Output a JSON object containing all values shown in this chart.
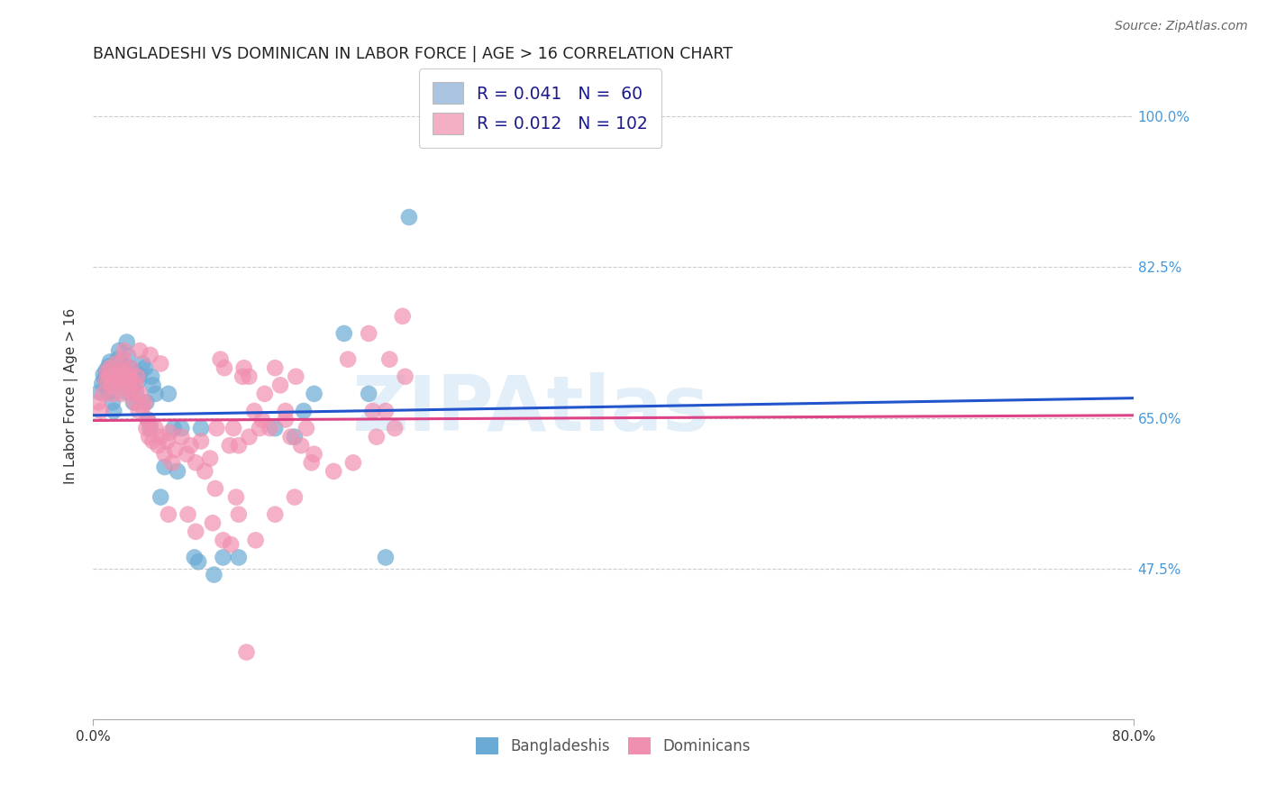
{
  "title": "BANGLADESHI VS DOMINICAN IN LABOR FORCE | AGE > 16 CORRELATION CHART",
  "source": "Source: ZipAtlas.com",
  "ylabel": "In Labor Force | Age > 16",
  "yticks": [
    47.5,
    65.0,
    82.5,
    100.0
  ],
  "ytick_labels": [
    "47.5%",
    "65.0%",
    "82.5%",
    "100.0%"
  ],
  "xmin": 0.0,
  "xmax": 0.8,
  "ymin": 0.3,
  "ymax": 1.05,
  "watermark": "ZIPAtlas",
  "legend_entries": [
    {
      "label": "R = 0.041   N =  60",
      "color": "#aac4e2"
    },
    {
      "label": "R = 0.012   N = 102",
      "color": "#f4afc4"
    }
  ],
  "legend_bottom_labels": [
    "Bangladeshis",
    "Dominicans"
  ],
  "blue_color": "#6aaad4",
  "pink_color": "#f090b0",
  "blue_line_color": "#2255cc",
  "pink_line_color": "#dd4488",
  "blue_scatter": [
    [
      0.005,
      0.68
    ],
    [
      0.007,
      0.69
    ],
    [
      0.008,
      0.7
    ],
    [
      0.009,
      0.695
    ],
    [
      0.01,
      0.705
    ],
    [
      0.011,
      0.698
    ],
    [
      0.012,
      0.68
    ],
    [
      0.012,
      0.71
    ],
    [
      0.013,
      0.715
    ],
    [
      0.014,
      0.7
    ],
    [
      0.015,
      0.695
    ],
    [
      0.015,
      0.668
    ],
    [
      0.016,
      0.69
    ],
    [
      0.016,
      0.658
    ],
    [
      0.017,
      0.705
    ],
    [
      0.018,
      0.695
    ],
    [
      0.019,
      0.718
    ],
    [
      0.02,
      0.728
    ],
    [
      0.021,
      0.715
    ],
    [
      0.022,
      0.7
    ],
    [
      0.023,
      0.71
    ],
    [
      0.024,
      0.692
    ],
    [
      0.025,
      0.68
    ],
    [
      0.026,
      0.738
    ],
    [
      0.027,
      0.722
    ],
    [
      0.028,
      0.708
    ],
    [
      0.03,
      0.685
    ],
    [
      0.031,
      0.668
    ],
    [
      0.032,
      0.703
    ],
    [
      0.033,
      0.68
    ],
    [
      0.035,
      0.693
    ],
    [
      0.036,
      0.7
    ],
    [
      0.038,
      0.713
    ],
    [
      0.04,
      0.708
    ],
    [
      0.041,
      0.668
    ],
    [
      0.042,
      0.648
    ],
    [
      0.044,
      0.638
    ],
    [
      0.045,
      0.698
    ],
    [
      0.046,
      0.688
    ],
    [
      0.048,
      0.678
    ],
    [
      0.052,
      0.558
    ],
    [
      0.055,
      0.593
    ],
    [
      0.058,
      0.678
    ],
    [
      0.062,
      0.638
    ],
    [
      0.065,
      0.588
    ],
    [
      0.068,
      0.638
    ],
    [
      0.078,
      0.488
    ],
    [
      0.081,
      0.483
    ],
    [
      0.083,
      0.638
    ],
    [
      0.093,
      0.468
    ],
    [
      0.1,
      0.488
    ],
    [
      0.112,
      0.488
    ],
    [
      0.14,
      0.638
    ],
    [
      0.155,
      0.628
    ],
    [
      0.162,
      0.658
    ],
    [
      0.17,
      0.678
    ],
    [
      0.193,
      0.748
    ],
    [
      0.212,
      0.678
    ],
    [
      0.225,
      0.488
    ],
    [
      0.243,
      0.883
    ]
  ],
  "pink_scatter": [
    [
      0.004,
      0.668
    ],
    [
      0.006,
      0.658
    ],
    [
      0.008,
      0.678
    ],
    [
      0.01,
      0.693
    ],
    [
      0.011,
      0.703
    ],
    [
      0.012,
      0.698
    ],
    [
      0.013,
      0.708
    ],
    [
      0.014,
      0.688
    ],
    [
      0.015,
      0.678
    ],
    [
      0.016,
      0.693
    ],
    [
      0.017,
      0.698
    ],
    [
      0.018,
      0.713
    ],
    [
      0.019,
      0.693
    ],
    [
      0.02,
      0.703
    ],
    [
      0.021,
      0.698
    ],
    [
      0.022,
      0.678
    ],
    [
      0.023,
      0.718
    ],
    [
      0.024,
      0.728
    ],
    [
      0.025,
      0.693
    ],
    [
      0.026,
      0.703
    ],
    [
      0.027,
      0.683
    ],
    [
      0.028,
      0.698
    ],
    [
      0.029,
      0.708
    ],
    [
      0.03,
      0.693
    ],
    [
      0.031,
      0.678
    ],
    [
      0.032,
      0.668
    ],
    [
      0.033,
      0.688
    ],
    [
      0.034,
      0.698
    ],
    [
      0.035,
      0.658
    ],
    [
      0.036,
      0.678
    ],
    [
      0.038,
      0.663
    ],
    [
      0.04,
      0.668
    ],
    [
      0.041,
      0.638
    ],
    [
      0.042,
      0.648
    ],
    [
      0.043,
      0.628
    ],
    [
      0.044,
      0.643
    ],
    [
      0.046,
      0.623
    ],
    [
      0.048,
      0.638
    ],
    [
      0.05,
      0.618
    ],
    [
      0.052,
      0.628
    ],
    [
      0.055,
      0.608
    ],
    [
      0.057,
      0.623
    ],
    [
      0.059,
      0.633
    ],
    [
      0.061,
      0.598
    ],
    [
      0.063,
      0.613
    ],
    [
      0.068,
      0.628
    ],
    [
      0.072,
      0.608
    ],
    [
      0.075,
      0.618
    ],
    [
      0.079,
      0.598
    ],
    [
      0.083,
      0.623
    ],
    [
      0.086,
      0.588
    ],
    [
      0.09,
      0.603
    ],
    [
      0.094,
      0.568
    ],
    [
      0.098,
      0.718
    ],
    [
      0.101,
      0.708
    ],
    [
      0.105,
      0.618
    ],
    [
      0.108,
      0.638
    ],
    [
      0.112,
      0.618
    ],
    [
      0.116,
      0.708
    ],
    [
      0.12,
      0.698
    ],
    [
      0.124,
      0.658
    ],
    [
      0.128,
      0.638
    ],
    [
      0.132,
      0.678
    ],
    [
      0.136,
      0.638
    ],
    [
      0.14,
      0.708
    ],
    [
      0.144,
      0.688
    ],
    [
      0.148,
      0.658
    ],
    [
      0.152,
      0.628
    ],
    [
      0.156,
      0.698
    ],
    [
      0.16,
      0.618
    ],
    [
      0.164,
      0.638
    ],
    [
      0.168,
      0.598
    ],
    [
      0.036,
      0.728
    ],
    [
      0.044,
      0.723
    ],
    [
      0.052,
      0.713
    ],
    [
      0.058,
      0.538
    ],
    [
      0.073,
      0.538
    ],
    [
      0.079,
      0.518
    ],
    [
      0.092,
      0.528
    ],
    [
      0.1,
      0.508
    ],
    [
      0.106,
      0.503
    ],
    [
      0.112,
      0.538
    ],
    [
      0.118,
      0.378
    ],
    [
      0.125,
      0.508
    ],
    [
      0.14,
      0.538
    ],
    [
      0.155,
      0.558
    ],
    [
      0.17,
      0.608
    ],
    [
      0.185,
      0.588
    ],
    [
      0.2,
      0.598
    ],
    [
      0.212,
      0.748
    ],
    [
      0.218,
      0.628
    ],
    [
      0.225,
      0.658
    ],
    [
      0.232,
      0.638
    ],
    [
      0.24,
      0.698
    ],
    [
      0.095,
      0.638
    ],
    [
      0.11,
      0.558
    ],
    [
      0.115,
      0.698
    ],
    [
      0.12,
      0.628
    ],
    [
      0.13,
      0.648
    ],
    [
      0.148,
      0.648
    ],
    [
      0.196,
      0.718
    ],
    [
      0.215,
      0.658
    ],
    [
      0.228,
      0.718
    ],
    [
      0.238,
      0.768
    ]
  ],
  "blue_line_x": [
    0.0,
    0.8
  ],
  "blue_line_y": [
    0.653,
    0.673
  ],
  "pink_line_x": [
    0.0,
    0.8
  ],
  "pink_line_y": [
    0.647,
    0.653
  ],
  "grid_color": "#cccccc",
  "bg_color": "#ffffff",
  "right_axis_color": "#4499dd",
  "title_fontsize": 12.5,
  "label_fontsize": 11,
  "tick_fontsize": 11,
  "source_fontsize": 10
}
